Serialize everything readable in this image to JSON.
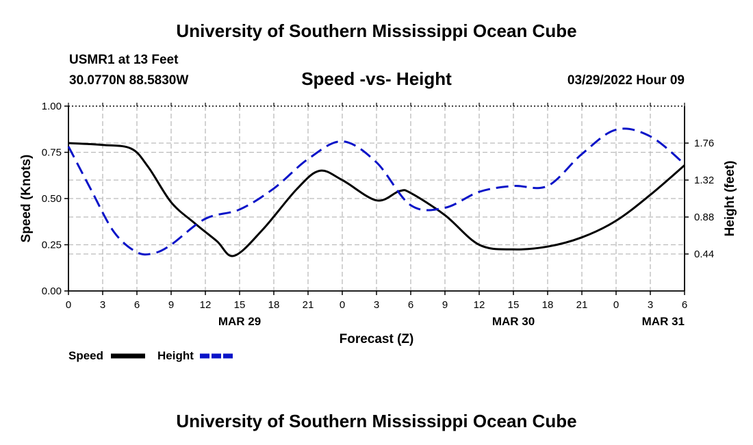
{
  "header": {
    "title": "University of Southern Mississippi Ocean Cube",
    "station_line1": "USMR1 at 13 Feet",
    "station_line2": "30.0770N  88.5830W",
    "datetime": "03/29/2022 Hour 09"
  },
  "footer": {
    "title": "University of Southern Mississippi Ocean Cube"
  },
  "colors": {
    "speed": "#000000",
    "height": "#0a14c8",
    "grid": "#bbbbbb"
  },
  "chart_data": {
    "type": "line",
    "title": "Speed -vs- Height",
    "xlabel": "Forecast (Z)",
    "ylabel": "Speed (Knots)",
    "y2label": "Height (feet)",
    "x_ticks": [
      "0",
      "3",
      "6",
      "9",
      "12",
      "15",
      "18",
      "21",
      "0",
      "3",
      "6",
      "9",
      "12",
      "15",
      "18",
      "21",
      "0",
      "3",
      "6"
    ],
    "date_labels": [
      {
        "label": "MAR 29",
        "hour": 15
      },
      {
        "label": "MAR 30",
        "hour": 39
      },
      {
        "label": "MAR 31",
        "hour": 63
      }
    ],
    "xlim": [
      0,
      54
    ],
    "ylim": [
      0,
      1.0
    ],
    "y_ticks": [
      "0.00",
      "0.25",
      "0.50",
      "0.75",
      "1.00"
    ],
    "y2lim": [
      0,
      2.2
    ],
    "y2_ticks": [
      "0.44",
      "0.88",
      "1.32",
      "1.76"
    ],
    "grid": true,
    "legend": [
      {
        "name": "Speed",
        "style": "solid"
      },
      {
        "name": "Height",
        "style": "dashed"
      }
    ],
    "series": [
      {
        "name": "Speed",
        "axis": "left",
        "style": "solid",
        "x": [
          0,
          3,
          5.5,
          7,
          9,
          11,
          13,
          14.5,
          17,
          20,
          22,
          24,
          27,
          29,
          30,
          33,
          36,
          39,
          42,
          45,
          48,
          51,
          54
        ],
        "y": [
          0.8,
          0.79,
          0.77,
          0.67,
          0.48,
          0.37,
          0.27,
          0.19,
          0.33,
          0.55,
          0.65,
          0.6,
          0.49,
          0.54,
          0.53,
          0.41,
          0.25,
          0.225,
          0.24,
          0.29,
          0.38,
          0.52,
          0.68
        ]
      },
      {
        "name": "Height",
        "axis": "right",
        "style": "dashed",
        "x": [
          0,
          2,
          4,
          6,
          7.5,
          9,
          12,
          15,
          18,
          21,
          24,
          27,
          30,
          33,
          36,
          39,
          42,
          45,
          48,
          51,
          54
        ],
        "y": [
          1.72,
          1.2,
          0.7,
          0.46,
          0.45,
          0.55,
          0.86,
          0.97,
          1.22,
          1.57,
          1.78,
          1.53,
          1.02,
          0.99,
          1.18,
          1.25,
          1.25,
          1.63,
          1.92,
          1.84,
          1.51
        ]
      }
    ]
  }
}
